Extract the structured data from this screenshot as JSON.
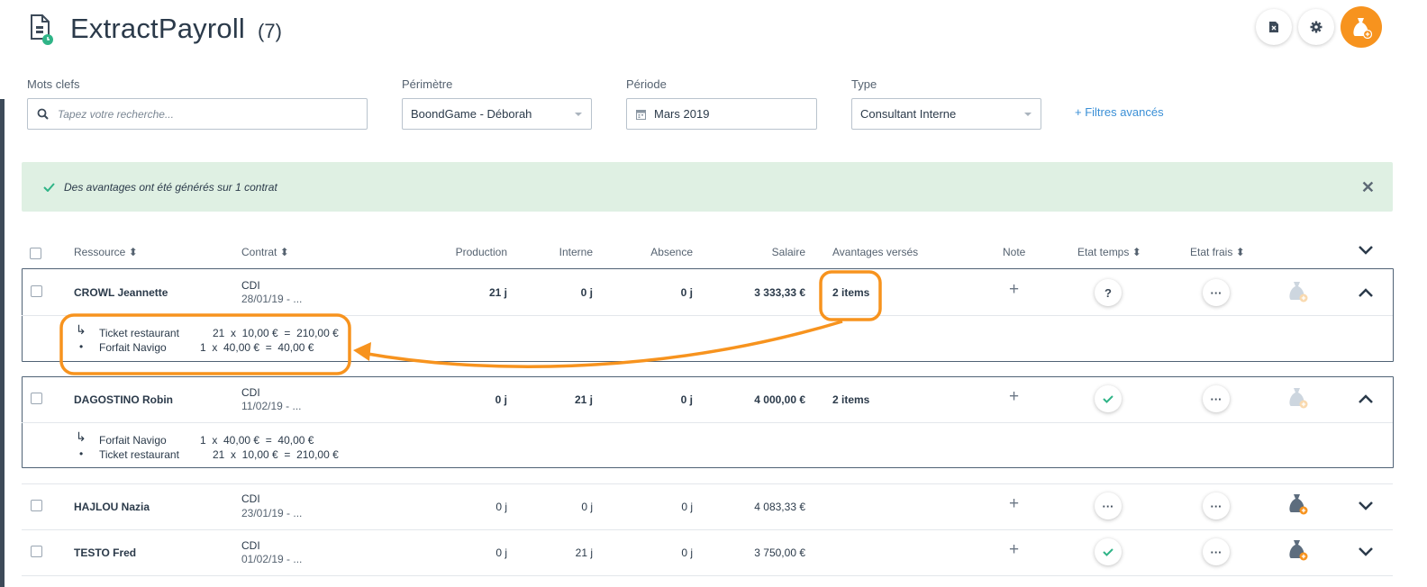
{
  "header": {
    "title": "ExtractPayroll",
    "count": "(7)"
  },
  "colors": {
    "accent": "#f7931e",
    "link": "#3a8fd6",
    "success": "#2fb487",
    "alert_bg": "#dff0e3"
  },
  "filters": {
    "keywords_label": "Mots clefs",
    "keywords_placeholder": "Tapez votre recherche...",
    "perimeter_label": "Périmètre",
    "perimeter_value": "BoondGame - Déborah",
    "period_label": "Période",
    "period_value": "Mars 2019",
    "type_label": "Type",
    "type_value": "Consultant Interne",
    "advanced": "+ Filtres avancés"
  },
  "alert": {
    "message": "Des avantages ont été générés sur 1 contrat"
  },
  "table": {
    "headers": {
      "resource": "Ressource",
      "contract": "Contrat",
      "production": "Production",
      "internal": "Interne",
      "absence": "Absence",
      "salary": "Salaire",
      "benefits": "Avantages versés",
      "note": "Note",
      "time_state": "Etat temps",
      "expense_state": "Etat frais"
    },
    "rows": [
      {
        "name": "CROWL Jeannette",
        "contract": "CDI",
        "dates": "28/01/19 - ...",
        "production": "21 j",
        "internal": "0 j",
        "absence": "0 j",
        "salary": "3 333,33 €",
        "benefits": "2 items",
        "details": [
          {
            "label": "Ticket restaurant",
            "calc": "21  x  10,00 €  =  210,00 €"
          },
          {
            "label": "Forfait Navigo",
            "calc": "1  x  40,00 €  =  40,00 €"
          }
        ]
      },
      {
        "name": "DAGOSTINO Robin",
        "contract": "CDI",
        "dates": "11/02/19 - ...",
        "production": "0 j",
        "internal": "21 j",
        "absence": "0 j",
        "salary": "4 000,00 €",
        "benefits": "2 items",
        "details": [
          {
            "label": "Forfait Navigo",
            "calc": "1  x  40,00 €  =  40,00 €"
          },
          {
            "label": "Ticket restaurant",
            "calc": "21  x  10,00 €  =  210,00 €"
          }
        ]
      },
      {
        "name": "HAJLOU Nazia",
        "contract": "CDI",
        "dates": "23/01/19 - ...",
        "production": "0 j",
        "internal": "0 j",
        "absence": "0 j",
        "salary": "4 083,33 €",
        "benefits": ""
      },
      {
        "name": "TESTO Fred",
        "contract": "CDI",
        "dates": "01/02/19 - ...",
        "production": "0 j",
        "internal": "21 j",
        "absence": "0 j",
        "salary": "3 750,00 €",
        "benefits": ""
      }
    ]
  }
}
